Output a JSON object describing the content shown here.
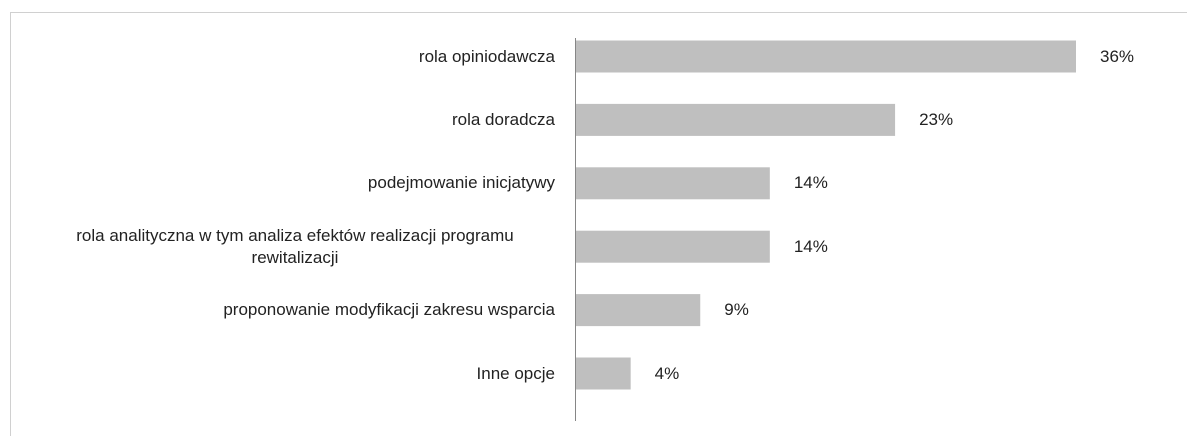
{
  "chart_data": {
    "type": "bar",
    "orientation": "horizontal",
    "categories": [
      "rola opiniodawcza",
      "rola doradcza",
      "podejmowanie inicjatywy",
      "rola analityczna w tym analiza efektów realizacji programu rewitalizacji",
      "proponowanie modyfikacji zakresu wsparcia",
      "Inne opcje"
    ],
    "values": [
      36,
      23,
      14,
      14,
      9,
      4
    ],
    "value_labels": [
      "36%",
      "23%",
      "14%",
      "14%",
      "9%",
      "4%"
    ],
    "color": "#bfbfbf"
  }
}
